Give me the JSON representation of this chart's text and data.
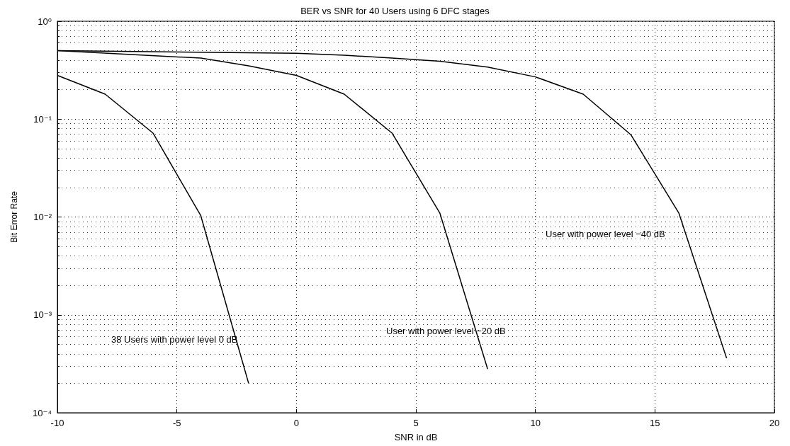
{
  "chart_data": {
    "type": "line",
    "title": "BER vs SNR for 40 Users using 6 DFC stages",
    "xlabel": "SNR in dB",
    "ylabel": "Bit Error Rate",
    "log": "y",
    "grid": true,
    "marker": "none",
    "line_style": "solid",
    "xlim": [
      -10,
      20
    ],
    "xticks": [
      -10,
      -5,
      0,
      5,
      10,
      15,
      20
    ],
    "ylim": [
      0.0001,
      1
    ],
    "yticks": [
      {
        "value": 0.0001,
        "label": "10⁻⁴"
      },
      {
        "value": 0.001,
        "label": "10⁻³"
      },
      {
        "value": 0.01,
        "label": "10⁻²"
      },
      {
        "value": 0.1,
        "label": "10⁻¹"
      },
      {
        "value": 1,
        "label": "10⁰"
      }
    ],
    "series": [
      {
        "color": "#000000",
        "x": [
          -10,
          -8,
          -6,
          -4,
          -2
        ],
        "values": [
          0.28,
          0.18,
          0.072,
          0.0103,
          0.0002
        ]
      },
      {
        "color": "#000000",
        "x": [
          -10,
          -4,
          -2,
          0,
          2,
          4,
          6,
          8
        ],
        "values": [
          0.5,
          0.42,
          0.35,
          0.28,
          0.18,
          0.072,
          0.011,
          0.00028
        ]
      },
      {
        "color": "#000000",
        "x": [
          -10,
          0,
          2,
          4,
          6,
          8,
          10,
          12,
          14,
          16,
          18
        ],
        "values": [
          0.5,
          0.47,
          0.45,
          0.42,
          0.39,
          0.34,
          0.27,
          0.18,
          0.069,
          0.011,
          0.00036
        ]
      }
    ],
    "annotations": [
      "38 Users with power level 0 dB",
      "User with power level −20 dB",
      "User with power level −40 dB"
    ]
  }
}
